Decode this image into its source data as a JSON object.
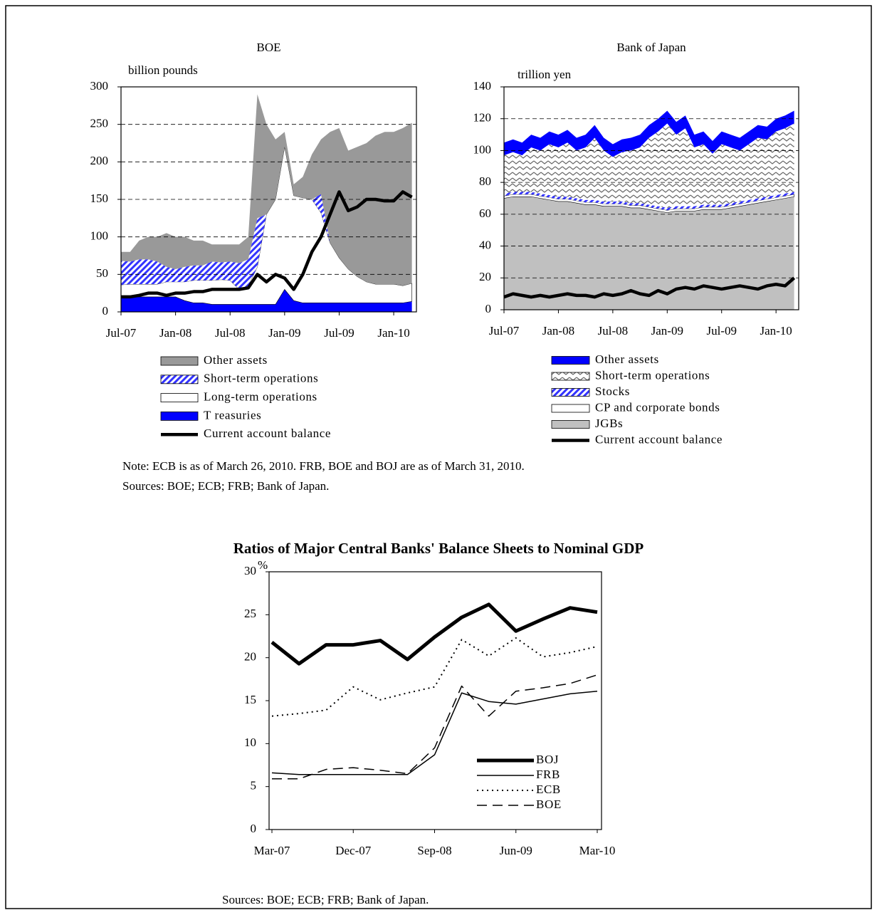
{
  "chart_data": [
    {
      "type": "area",
      "title": "BOE",
      "y_label": "billion pounds",
      "categories": [
        "Jul-07",
        null,
        null,
        null,
        null,
        null,
        "Jan-08",
        null,
        null,
        null,
        null,
        null,
        "Jul-08",
        null,
        null,
        null,
        null,
        null,
        "Jan-09",
        null,
        null,
        null,
        null,
        null,
        "Jul-09",
        null,
        null,
        null,
        null,
        null,
        "Jan-10",
        null,
        null
      ],
      "ylim": [
        0,
        300
      ],
      "yticks": [
        0,
        50,
        100,
        150,
        200,
        250,
        300
      ],
      "grid": true,
      "series": [
        {
          "name": "Other assets",
          "color": "#999999",
          "values": [
            12,
            13,
            25,
            30,
            33,
            45,
            43,
            40,
            33,
            33,
            23,
            24,
            23,
            25,
            30,
            165,
            120,
            80,
            20,
            15,
            28,
            60,
            73,
            148,
            173,
            158,
            173,
            185,
            198,
            203,
            203,
            210,
            214
          ]
        },
        {
          "name": "Short-term operations",
          "color": "#3333ff",
          "pattern": "diagonal",
          "values": [
            32,
            30,
            33,
            33,
            30,
            20,
            17,
            20,
            20,
            20,
            25,
            23,
            25,
            35,
            35,
            65,
            0,
            0,
            0,
            0,
            0,
            0,
            25,
            0,
            0,
            0,
            0,
            0,
            0,
            0,
            0,
            0,
            0
          ]
        },
        {
          "name": "Long-term operations",
          "color": "#ffffff",
          "values": [
            18,
            17,
            17,
            17,
            17,
            20,
            20,
            25,
            30,
            30,
            32,
            33,
            32,
            20,
            25,
            50,
            120,
            140,
            190,
            140,
            140,
            138,
            120,
            80,
            60,
            45,
            35,
            28,
            25,
            25,
            25,
            23,
            24
          ]
        },
        {
          "name": "T reasuries",
          "color": "#0000ff",
          "values": [
            18,
            20,
            20,
            20,
            20,
            20,
            20,
            15,
            12,
            12,
            10,
            10,
            10,
            10,
            10,
            10,
            10,
            10,
            30,
            15,
            12,
            12,
            12,
            12,
            12,
            12,
            12,
            12,
            12,
            12,
            12,
            12,
            14
          ]
        },
        {
          "name": "Current account balance",
          "color": "#000000",
          "type": "line",
          "values": [
            20,
            20,
            22,
            25,
            25,
            22,
            25,
            25,
            27,
            27,
            30,
            30,
            30,
            30,
            32,
            50,
            40,
            50,
            45,
            30,
            50,
            80,
            100,
            130,
            160,
            135,
            140,
            150,
            150,
            148,
            148,
            160,
            153
          ]
        }
      ]
    },
    {
      "type": "area",
      "title": "Bank of Japan",
      "y_label": "trillion yen",
      "categories": [
        "Jul-07",
        null,
        null,
        null,
        null,
        null,
        "Jan-08",
        null,
        null,
        null,
        null,
        null,
        "Jul-08",
        null,
        null,
        null,
        null,
        null,
        "Jan-09",
        null,
        null,
        null,
        null,
        null,
        "Jul-09",
        null,
        null,
        null,
        null,
        null,
        "Jan-10",
        null,
        null
      ],
      "ylim": [
        0,
        140
      ],
      "yticks": [
        0,
        20,
        40,
        60,
        80,
        100,
        120,
        140
      ],
      "grid": true,
      "series": [
        {
          "name": "Other assets",
          "color": "#0000ff",
          "values": [
            8,
            8,
            8,
            8,
            8,
            8,
            8,
            8,
            8,
            8,
            8,
            8,
            8,
            8,
            8,
            8,
            8,
            8,
            8,
            8,
            8,
            8,
            8,
            8,
            8,
            8,
            8,
            8,
            8,
            8,
            8,
            8,
            8
          ]
        },
        {
          "name": "Short-term operations",
          "color": "#808080",
          "pattern": "wave",
          "values": [
            24,
            25,
            23,
            28,
            27,
            32,
            31,
            34,
            30,
            33,
            39,
            32,
            28,
            31,
            33,
            35,
            42,
            47,
            53,
            45,
            49,
            37,
            38,
            32,
            38,
            35,
            32,
            35,
            38,
            36,
            40,
            41,
            43
          ]
        },
        {
          "name": "Stocks",
          "color": "#3333ff",
          "pattern": "diagonal",
          "values": [
            1.5,
            1.5,
            1.5,
            1.5,
            1.5,
            1.5,
            1.5,
            1.5,
            1.5,
            1.5,
            1.5,
            1.5,
            1.5,
            1.5,
            1.5,
            1.5,
            1.5,
            1.5,
            1.5,
            1.5,
            1.5,
            1.5,
            1.5,
            1.5,
            1.5,
            1.5,
            1.5,
            1.5,
            1.5,
            1.5,
            1.5,
            1.5,
            1.5
          ]
        },
        {
          "name": "CP and corporate bonds",
          "color": "#ffffff",
          "values": [
            1.5,
            1.5,
            1.5,
            1.5,
            1.5,
            1.5,
            1.5,
            1.5,
            1.5,
            1.5,
            1.5,
            1.5,
            1.5,
            1.5,
            1.5,
            1.5,
            1.5,
            1.5,
            1.5,
            1.5,
            1.5,
            1.5,
            1.5,
            1.5,
            1.5,
            1.5,
            1.5,
            1.5,
            1.5,
            1.5,
            1.5,
            1.5,
            1.5
          ]
        },
        {
          "name": "JGBs",
          "color": "#c0c0c0",
          "values": [
            70,
            71,
            71,
            71,
            70,
            69,
            68,
            68,
            67,
            66,
            66,
            65,
            65,
            65,
            64,
            64,
            63,
            62,
            61,
            62,
            62,
            62,
            63,
            63,
            63,
            64,
            65,
            66,
            67,
            68,
            69,
            70,
            71
          ]
        },
        {
          "name": "Current account balance",
          "color": "#000000",
          "type": "line",
          "values": [
            8,
            10,
            9,
            8,
            9,
            8,
            9,
            10,
            9,
            9,
            8,
            10,
            9,
            10,
            12,
            10,
            9,
            12,
            10,
            13,
            14,
            13,
            15,
            14,
            13,
            14,
            15,
            14,
            13,
            15,
            16,
            15,
            20
          ]
        }
      ]
    },
    {
      "type": "line",
      "title": "Ratios of Major Central Banks' Balance Sheets to Nominal GDP",
      "y_label": "%",
      "categories": [
        "Mar-07",
        null,
        null,
        "Dec-07",
        null,
        null,
        "Sep-08",
        null,
        null,
        "Jun-09",
        null,
        null,
        "Mar-10"
      ],
      "ylim": [
        0,
        30
      ],
      "yticks": [
        0,
        5,
        10,
        15,
        20,
        25,
        30
      ],
      "grid": false,
      "series": [
        {
          "name": "BOJ",
          "color": "#000000",
          "line_style": "solid",
          "line_width": 5,
          "values": [
            21.8,
            19.3,
            21.5,
            21.5,
            22,
            19.8,
            22.4,
            24.7,
            26.2,
            23.1,
            24.5,
            25.8,
            25.3
          ]
        },
        {
          "name": "FRB",
          "color": "#000000",
          "line_style": "solid",
          "line_width": 1.5,
          "values": [
            6.6,
            6.4,
            6.4,
            6.4,
            6.4,
            6.4,
            8.7,
            15.9,
            14.9,
            14.6,
            15.2,
            15.8,
            16.1
          ]
        },
        {
          "name": "ECB",
          "color": "#000000",
          "line_style": "dotted",
          "line_width": 2,
          "values": [
            13.2,
            13.5,
            13.9,
            16.6,
            15.1,
            15.9,
            16.6,
            22.1,
            20.2,
            22.3,
            20.1,
            20.6,
            21.3
          ]
        },
        {
          "name": "BOE",
          "color": "#000000",
          "line_style": "dashed",
          "line_width": 1.5,
          "values": [
            5.9,
            5.9,
            7,
            7.2,
            6.9,
            6.5,
            9.5,
            16.7,
            13.2,
            16.1,
            16.5,
            17,
            18
          ]
        }
      ]
    }
  ],
  "note": "Note: ECB is as of March 26, 2010. FRB, BOE and BOJ are as of March 31, 2010.",
  "sources": "Sources: BOE; ECB; FRB; Bank of Japan.",
  "ratio_sources": "Sources: BOE; ECB; FRB; Bank of Japan."
}
